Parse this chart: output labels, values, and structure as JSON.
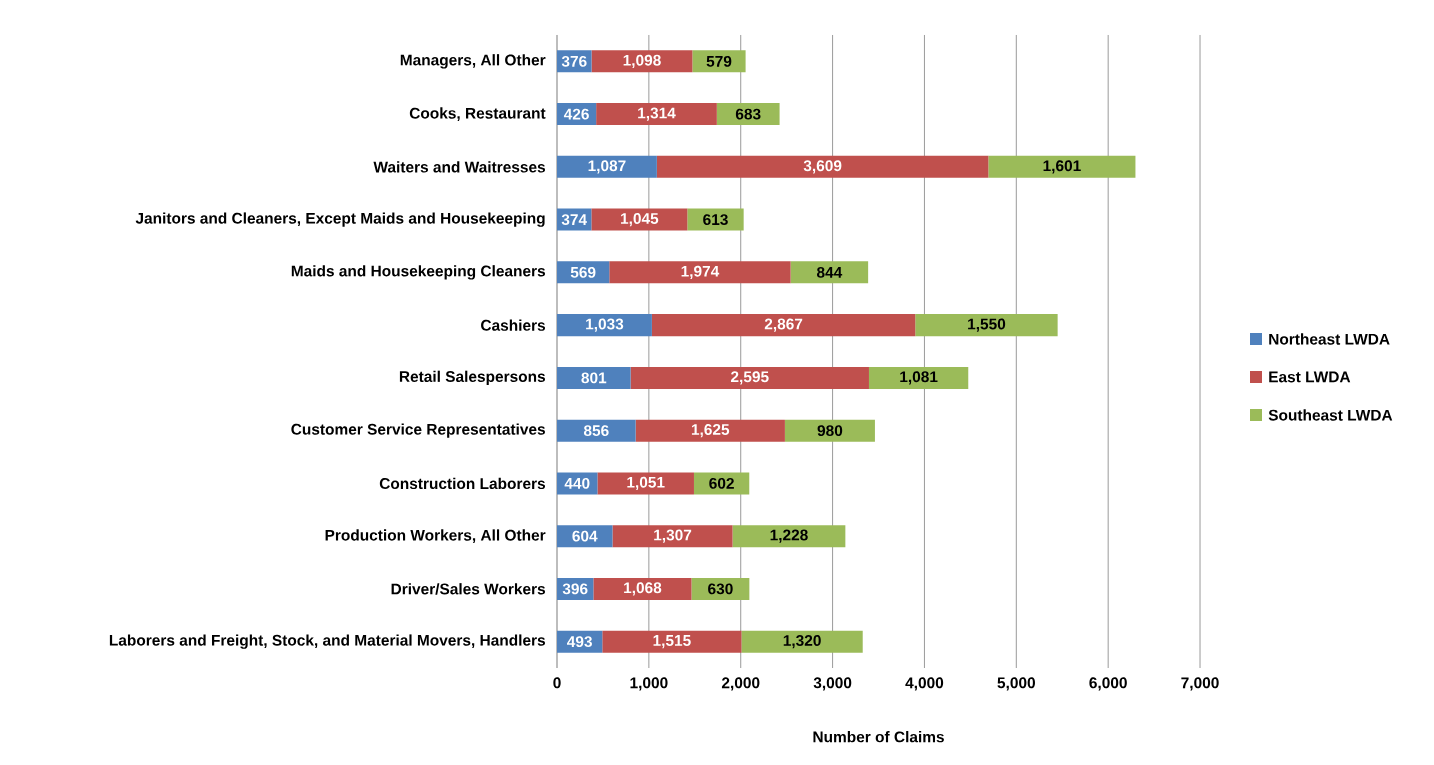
{
  "chart_data": {
    "type": "bar",
    "orientation": "horizontal",
    "stacked": true,
    "xlabel": "Number of Claims",
    "categories": [
      "Managers, All Other",
      "Cooks, Restaurant",
      "Waiters and Waitresses",
      "Janitors and Cleaners, Except Maids and Housekeeping",
      "Maids and Housekeeping Cleaners",
      "Cashiers",
      "Retail Salespersons",
      "Customer Service Representatives",
      "Construction Laborers",
      "Production Workers, All Other",
      "Driver/Sales Workers",
      "Laborers and Freight, Stock, and Material Movers, Handlers"
    ],
    "series": [
      {
        "name": "Northeast LWDA",
        "color": "#4f81bd",
        "values": [
          376,
          426,
          1087,
          374,
          569,
          1033,
          801,
          856,
          440,
          604,
          396,
          493
        ],
        "value_labels": [
          "376",
          "426",
          "1,087",
          "374",
          "569",
          "1,033",
          "801",
          "856",
          "440",
          "604",
          "396",
          "493"
        ]
      },
      {
        "name": "East LWDA",
        "color": "#c0504d",
        "values": [
          1098,
          1314,
          3609,
          1045,
          1974,
          2867,
          2595,
          1625,
          1051,
          1307,
          1068,
          1515
        ],
        "value_labels": [
          "1,098",
          "1,314",
          "3,609",
          "1,045",
          "1,974",
          "2,867",
          "2,595",
          "1,625",
          "1,051",
          "1,307",
          "1,068",
          "1,515"
        ]
      },
      {
        "name": "Southeast LWDA",
        "color": "#9bbb59",
        "values": [
          579,
          683,
          1601,
          613,
          844,
          1550,
          1081,
          980,
          602,
          1228,
          630,
          1320
        ],
        "value_labels": [
          "579",
          "683",
          "1,601",
          "613",
          "844",
          "1,550",
          "1,081",
          "980",
          "602",
          "1,228",
          "630",
          "1,320"
        ]
      }
    ],
    "xlim": [
      0,
      7000
    ],
    "xticks": [
      0,
      {
        "value": 1000,
        "label": "1,000"
      },
      {
        "value": 2000,
        "label": "2,000"
      },
      {
        "value": 3000,
        "label": "3,000"
      },
      {
        "value": 4000,
        "label": "4,000"
      },
      {
        "value": 5000,
        "label": "5,000"
      },
      {
        "value": 6000,
        "label": "6,000"
      },
      {
        "value": 7000,
        "label": "7,000"
      }
    ],
    "grid": "x",
    "legend": "right"
  }
}
